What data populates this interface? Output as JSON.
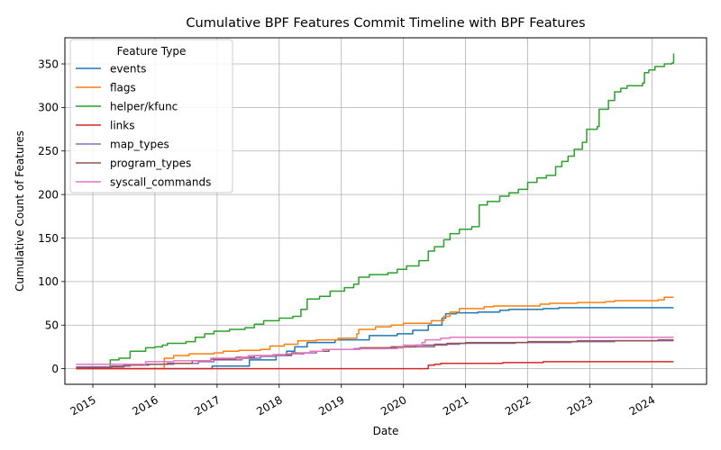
{
  "chart_data": {
    "type": "line",
    "title": "Cumulative BPF Features Commit Timeline with BPF Features",
    "xlabel": "Date",
    "ylabel": "Cumulative Count of Features",
    "xlim": [
      2014.55,
      2024.88
    ],
    "ylim": [
      -18,
      380
    ],
    "x_ticks": [
      {
        "value": 2015,
        "label": "2015"
      },
      {
        "value": 2016,
        "label": "2016"
      },
      {
        "value": 2017,
        "label": "2017"
      },
      {
        "value": 2018,
        "label": "2018"
      },
      {
        "value": 2019,
        "label": "2019"
      },
      {
        "value": 2020,
        "label": "2020"
      },
      {
        "value": 2021,
        "label": "2021"
      },
      {
        "value": 2022,
        "label": "2022"
      },
      {
        "value": 2023,
        "label": "2023"
      },
      {
        "value": 2024,
        "label": "2024"
      }
    ],
    "y_ticks": [
      0,
      50,
      100,
      150,
      200,
      250,
      300,
      350
    ],
    "grid": true,
    "legend": {
      "title": "Feature Type",
      "placement": "top-left"
    },
    "series": [
      {
        "name": "events",
        "color": "#1f77b4",
        "points": [
          [
            2014.73,
            0
          ],
          [
            2016.9,
            0
          ],
          [
            2016.92,
            3
          ],
          [
            2017.48,
            3
          ],
          [
            2017.52,
            10
          ],
          [
            2017.95,
            16
          ],
          [
            2018.12,
            20
          ],
          [
            2018.25,
            25
          ],
          [
            2018.45,
            30
          ],
          [
            2018.9,
            33
          ],
          [
            2019.45,
            38
          ],
          [
            2019.9,
            40
          ],
          [
            2020.15,
            44
          ],
          [
            2020.4,
            50
          ],
          [
            2020.62,
            58
          ],
          [
            2020.68,
            63
          ],
          [
            2020.85,
            64
          ],
          [
            2021.2,
            65
          ],
          [
            2021.55,
            67
          ],
          [
            2021.7,
            68
          ],
          [
            2022.25,
            69
          ],
          [
            2022.5,
            70
          ],
          [
            2024.35,
            70
          ]
        ]
      },
      {
        "name": "flags",
        "color": "#ff7f0e",
        "points": [
          [
            2014.73,
            0
          ],
          [
            2016.08,
            0
          ],
          [
            2016.15,
            12
          ],
          [
            2016.3,
            15
          ],
          [
            2016.55,
            17
          ],
          [
            2016.95,
            18
          ],
          [
            2017.1,
            20
          ],
          [
            2017.35,
            21
          ],
          [
            2017.7,
            22
          ],
          [
            2017.85,
            26
          ],
          [
            2018.08,
            28
          ],
          [
            2018.3,
            32
          ],
          [
            2018.6,
            33
          ],
          [
            2018.95,
            35
          ],
          [
            2019.25,
            40
          ],
          [
            2019.28,
            45
          ],
          [
            2019.55,
            48
          ],
          [
            2019.8,
            50
          ],
          [
            2020.0,
            52
          ],
          [
            2020.45,
            55
          ],
          [
            2020.65,
            60
          ],
          [
            2020.75,
            65
          ],
          [
            2020.9,
            69
          ],
          [
            2021.3,
            71
          ],
          [
            2021.45,
            72
          ],
          [
            2022.2,
            74
          ],
          [
            2022.35,
            75
          ],
          [
            2022.8,
            76
          ],
          [
            2023.25,
            77
          ],
          [
            2023.4,
            78
          ],
          [
            2024.1,
            79
          ],
          [
            2024.2,
            82
          ],
          [
            2024.35,
            82
          ]
        ]
      },
      {
        "name": "helper/kfunc",
        "color": "#2ca02c",
        "points": [
          [
            2014.73,
            1
          ],
          [
            2015.22,
            1
          ],
          [
            2015.28,
            10
          ],
          [
            2015.42,
            12
          ],
          [
            2015.6,
            20
          ],
          [
            2015.85,
            24
          ],
          [
            2016.0,
            25
          ],
          [
            2016.12,
            27
          ],
          [
            2016.2,
            29
          ],
          [
            2016.5,
            31
          ],
          [
            2016.65,
            36
          ],
          [
            2016.8,
            40
          ],
          [
            2016.95,
            43
          ],
          [
            2017.2,
            45
          ],
          [
            2017.45,
            47
          ],
          [
            2017.6,
            51
          ],
          [
            2017.75,
            55
          ],
          [
            2018.0,
            58
          ],
          [
            2018.22,
            60
          ],
          [
            2018.35,
            68
          ],
          [
            2018.45,
            80
          ],
          [
            2018.65,
            83
          ],
          [
            2018.82,
            89
          ],
          [
            2019.05,
            93
          ],
          [
            2019.2,
            97
          ],
          [
            2019.28,
            105
          ],
          [
            2019.45,
            108
          ],
          [
            2019.75,
            110
          ],
          [
            2019.9,
            114
          ],
          [
            2020.05,
            118
          ],
          [
            2020.25,
            124
          ],
          [
            2020.4,
            135
          ],
          [
            2020.5,
            140
          ],
          [
            2020.65,
            148
          ],
          [
            2020.75,
            155
          ],
          [
            2020.9,
            160
          ],
          [
            2021.1,
            163
          ],
          [
            2021.22,
            188
          ],
          [
            2021.35,
            192
          ],
          [
            2021.55,
            198
          ],
          [
            2021.7,
            202
          ],
          [
            2021.85,
            206
          ],
          [
            2022.0,
            214
          ],
          [
            2022.15,
            219
          ],
          [
            2022.3,
            222
          ],
          [
            2022.45,
            232
          ],
          [
            2022.55,
            238
          ],
          [
            2022.65,
            244
          ],
          [
            2022.75,
            252
          ],
          [
            2022.88,
            260
          ],
          [
            2022.95,
            275
          ],
          [
            2023.12,
            278
          ],
          [
            2023.15,
            298
          ],
          [
            2023.3,
            308
          ],
          [
            2023.4,
            318
          ],
          [
            2023.5,
            322
          ],
          [
            2023.6,
            325
          ],
          [
            2023.85,
            328
          ],
          [
            2023.88,
            340
          ],
          [
            2023.95,
            343
          ],
          [
            2024.05,
            347
          ],
          [
            2024.2,
            350
          ],
          [
            2024.32,
            351
          ],
          [
            2024.35,
            362
          ]
        ]
      },
      {
        "name": "links",
        "color": "#d62728",
        "points": [
          [
            2014.73,
            0
          ],
          [
            2020.35,
            0
          ],
          [
            2020.4,
            4
          ],
          [
            2020.5,
            5
          ],
          [
            2020.6,
            6
          ],
          [
            2021.5,
            6
          ],
          [
            2021.6,
            7
          ],
          [
            2022.2,
            7
          ],
          [
            2022.25,
            8
          ],
          [
            2024.35,
            8
          ]
        ]
      },
      {
        "name": "map_types",
        "color": "#9467bd",
        "points": [
          [
            2014.73,
            2
          ],
          [
            2015.3,
            3
          ],
          [
            2015.6,
            4
          ],
          [
            2015.9,
            5
          ],
          [
            2016.3,
            6
          ],
          [
            2016.7,
            8
          ],
          [
            2016.95,
            10
          ],
          [
            2017.4,
            12
          ],
          [
            2017.7,
            14
          ],
          [
            2017.95,
            15
          ],
          [
            2018.2,
            17
          ],
          [
            2018.4,
            18
          ],
          [
            2018.6,
            20
          ],
          [
            2018.8,
            22
          ],
          [
            2019.2,
            23
          ],
          [
            2019.7,
            24
          ],
          [
            2020.0,
            25
          ],
          [
            2020.5,
            27
          ],
          [
            2020.7,
            28
          ],
          [
            2020.9,
            29
          ],
          [
            2021.8,
            30
          ],
          [
            2022.1,
            30
          ],
          [
            2022.7,
            31
          ],
          [
            2023.4,
            32
          ],
          [
            2024.35,
            32
          ]
        ]
      },
      {
        "name": "program_types",
        "color": "#8c564b",
        "points": [
          [
            2014.73,
            1
          ],
          [
            2015.3,
            2
          ],
          [
            2015.5,
            4
          ],
          [
            2015.8,
            5
          ],
          [
            2016.2,
            6
          ],
          [
            2016.6,
            9
          ],
          [
            2016.9,
            11
          ],
          [
            2017.3,
            13
          ],
          [
            2017.6,
            15
          ],
          [
            2017.9,
            16
          ],
          [
            2018.2,
            18
          ],
          [
            2018.5,
            20
          ],
          [
            2018.8,
            22
          ],
          [
            2019.3,
            24
          ],
          [
            2019.8,
            25
          ],
          [
            2020.2,
            27
          ],
          [
            2020.5,
            28
          ],
          [
            2020.7,
            29
          ],
          [
            2021.0,
            30
          ],
          [
            2022.0,
            31
          ],
          [
            2022.8,
            32
          ],
          [
            2024.1,
            33
          ],
          [
            2024.35,
            33
          ]
        ]
      },
      {
        "name": "syscall_commands",
        "color": "#e377c2",
        "points": [
          [
            2014.73,
            5
          ],
          [
            2015.7,
            5
          ],
          [
            2015.85,
            8
          ],
          [
            2016.2,
            8
          ],
          [
            2016.3,
            9
          ],
          [
            2016.7,
            9
          ],
          [
            2016.9,
            12
          ],
          [
            2017.4,
            13
          ],
          [
            2017.5,
            15
          ],
          [
            2017.9,
            16
          ],
          [
            2018.1,
            17
          ],
          [
            2018.3,
            18
          ],
          [
            2018.5,
            20
          ],
          [
            2018.7,
            22
          ],
          [
            2019.3,
            23
          ],
          [
            2019.9,
            24
          ],
          [
            2020.0,
            27
          ],
          [
            2020.3,
            30
          ],
          [
            2020.35,
            33
          ],
          [
            2020.6,
            35
          ],
          [
            2020.75,
            36
          ],
          [
            2024.35,
            36
          ]
        ]
      }
    ]
  }
}
